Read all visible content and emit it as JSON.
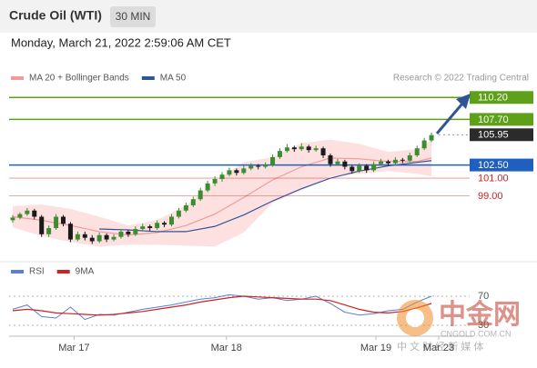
{
  "chart_data": {
    "type": "candlestick",
    "title": "Crude Oil (WTI)",
    "interval": "30 MIN",
    "timestamp": "Monday, March 21, 2022 2:59:06 AM CET",
    "credit": "Research © 2022 Trading Central",
    "legend": [
      {
        "name": "MA 20 + Bollinger Bands",
        "color": "#f29a9a"
      },
      {
        "name": "MA 50",
        "color": "#2f5597"
      }
    ],
    "up_color": "#3c8d2f",
    "down_color": "#1a1a1a",
    "candles": [
      [
        96.2,
        96.8,
        95.9,
        96.5
      ],
      [
        96.5,
        97.1,
        96.3,
        96.9
      ],
      [
        96.9,
        97.6,
        96.7,
        97.3
      ],
      [
        97.3,
        97.5,
        96.3,
        96.6
      ],
      [
        96.6,
        96.8,
        94.3,
        94.6
      ],
      [
        94.6,
        95.6,
        94.3,
        95.3
      ],
      [
        95.3,
        96.9,
        95.1,
        96.6
      ],
      [
        96.6,
        96.8,
        95.5,
        95.8
      ],
      [
        95.8,
        96.0,
        93.7,
        94.0
      ],
      [
        94.0,
        94.9,
        93.8,
        94.6
      ],
      [
        94.6,
        94.9,
        93.9,
        94.2
      ],
      [
        94.2,
        94.5,
        93.5,
        93.8
      ],
      [
        93.8,
        94.8,
        93.6,
        94.5
      ],
      [
        94.5,
        94.7,
        93.7,
        94.0
      ],
      [
        94.0,
        94.6,
        93.8,
        94.3
      ],
      [
        94.3,
        95.2,
        94.1,
        94.9
      ],
      [
        94.9,
        95.1,
        94.3,
        94.6
      ],
      [
        94.6,
        95.5,
        94.4,
        95.2
      ],
      [
        95.2,
        95.8,
        95.0,
        95.5
      ],
      [
        95.5,
        95.7,
        95.0,
        95.3
      ],
      [
        95.3,
        96.2,
        95.1,
        95.9
      ],
      [
        95.9,
        96.1,
        95.4,
        95.7
      ],
      [
        95.7,
        96.9,
        95.5,
        96.6
      ],
      [
        96.6,
        97.6,
        96.4,
        97.3
      ],
      [
        97.3,
        98.2,
        97.1,
        97.9
      ],
      [
        97.9,
        98.9,
        97.7,
        98.6
      ],
      [
        98.6,
        99.9,
        98.4,
        99.6
      ],
      [
        99.6,
        100.7,
        99.4,
        100.4
      ],
      [
        100.4,
        101.2,
        100.1,
        100.9
      ],
      [
        100.9,
        101.7,
        100.6,
        101.4
      ],
      [
        101.4,
        102.2,
        101.2,
        101.9
      ],
      [
        101.9,
        102.1,
        101.3,
        101.6
      ],
      [
        101.6,
        102.4,
        101.4,
        102.1
      ],
      [
        102.1,
        102.7,
        101.9,
        102.4
      ],
      [
        102.4,
        102.6,
        102.0,
        102.3
      ],
      [
        102.3,
        102.8,
        102.1,
        102.5
      ],
      [
        102.5,
        103.7,
        102.3,
        103.4
      ],
      [
        103.4,
        104.4,
        103.2,
        104.1
      ],
      [
        104.1,
        104.9,
        103.9,
        104.5
      ],
      [
        104.5,
        104.7,
        104.0,
        104.3
      ],
      [
        104.3,
        105.0,
        104.1,
        104.6
      ],
      [
        104.6,
        104.8,
        103.9,
        104.2
      ],
      [
        104.2,
        104.7,
        104.0,
        104.4
      ],
      [
        104.4,
        104.6,
        103.3,
        103.6
      ],
      [
        103.6,
        103.8,
        102.3,
        102.6
      ],
      [
        102.6,
        103.2,
        102.4,
        102.9
      ],
      [
        102.9,
        103.1,
        102.0,
        102.3
      ],
      [
        102.3,
        102.5,
        101.5,
        101.8
      ],
      [
        101.8,
        102.7,
        101.6,
        102.4
      ],
      [
        102.4,
        102.6,
        101.6,
        101.9
      ],
      [
        101.9,
        102.9,
        101.7,
        102.6
      ],
      [
        102.6,
        103.2,
        102.4,
        102.9
      ],
      [
        102.9,
        103.1,
        102.4,
        102.7
      ],
      [
        102.7,
        103.4,
        102.5,
        103.1
      ],
      [
        103.1,
        103.3,
        102.7,
        103.0
      ],
      [
        103.0,
        103.9,
        102.8,
        103.6
      ],
      [
        103.6,
        104.7,
        103.4,
        104.4
      ],
      [
        104.4,
        105.6,
        104.2,
        105.3
      ],
      [
        105.3,
        106.2,
        105.1,
        105.9
      ]
    ],
    "xlim": [
      -0.5,
      59
    ],
    "xticks": [
      {
        "value": 8.5,
        "label": "Mar 17"
      },
      {
        "value": 29.6,
        "label": "Mar 18"
      },
      {
        "value": 50.3,
        "label": "Mar 19"
      },
      {
        "value": 59,
        "label": "Mar 23"
      }
    ],
    "ylim": [
      92.3,
      115.1
    ],
    "bands": {
      "fill": "#fde1e1",
      "x": [
        0,
        4,
        8,
        12,
        16,
        20,
        24,
        28,
        32,
        36,
        40,
        44,
        48,
        52,
        56,
        58
      ],
      "upper": [
        97.8,
        98.0,
        97.5,
        96.6,
        95.6,
        96.2,
        97.9,
        100.6,
        102.8,
        103.4,
        105.0,
        105.4,
        104.9,
        104.0,
        104.3,
        105.4
      ],
      "lower": [
        95.4,
        94.4,
        93.7,
        93.2,
        93.4,
        93.4,
        93.3,
        93.2,
        94.8,
        98.2,
        99.6,
        101.2,
        101.5,
        101.8,
        101.5,
        101.2
      ],
      "ma20": [
        96.6,
        96.2,
        95.6,
        94.9,
        94.5,
        94.8,
        95.6,
        96.9,
        98.8,
        100.8,
        102.3,
        103.3,
        103.2,
        102.9,
        102.9,
        103.3
      ],
      "ma50": [
        null,
        null,
        null,
        95.2,
        95.1,
        94.9,
        94.9,
        95.5,
        96.8,
        98.4,
        99.8,
        101.0,
        101.8,
        102.4,
        102.8,
        103.0
      ]
    },
    "levels": [
      {
        "value": 110.2,
        "label": "110.20",
        "color": "#5ea01a",
        "style": "box",
        "line": "solid"
      },
      {
        "value": 107.7,
        "label": "107.70",
        "color": "#5ea01a",
        "style": "box",
        "line": "solid"
      },
      {
        "value": 105.95,
        "label": "105.95",
        "color": "#2b2b2b",
        "style": "box",
        "line": "dotted"
      },
      {
        "value": 102.5,
        "label": "102.50",
        "color": "#1f5fbf",
        "style": "box",
        "line": "solid"
      },
      {
        "value": 101,
        "label": "101.00",
        "color": "#d42020",
        "style": "text",
        "line": "solid"
      },
      {
        "value": 99,
        "label": "99.00",
        "color": "#d42020",
        "style": "text",
        "line": "solid"
      }
    ],
    "rsi": {
      "legend": [
        {
          "name": "RSI",
          "color": "#5b7fd4"
        },
        {
          "name": "9MA",
          "color": "#d42020"
        }
      ],
      "x": [
        0,
        2,
        4,
        6,
        8,
        10,
        12,
        14,
        16,
        18,
        20,
        22,
        24,
        26,
        28,
        30,
        32,
        34,
        36,
        38,
        40,
        42,
        44,
        46,
        48,
        50,
        52,
        54,
        56,
        58
      ],
      "rsi": [
        52,
        58,
        42,
        40,
        55,
        38,
        45,
        44,
        48,
        52,
        55,
        58,
        62,
        66,
        68,
        72,
        70,
        66,
        68,
        64,
        66,
        70,
        60,
        48,
        44,
        46,
        50,
        52,
        62,
        70
      ],
      "ma": [
        50,
        52,
        50,
        47,
        46,
        45,
        44,
        45,
        47,
        49,
        52,
        55,
        58,
        62,
        65,
        68,
        70,
        69,
        68,
        67,
        66,
        66,
        64,
        58,
        52,
        48,
        47,
        49,
        54,
        60
      ],
      "ylim": [
        15,
        90
      ],
      "yticks": [
        70,
        30
      ]
    },
    "watermark": {
      "logo": "中金网",
      "site": "CNGOLD.COM.CN",
      "tagline": "中 文 财 经 新 媒 体"
    }
  }
}
